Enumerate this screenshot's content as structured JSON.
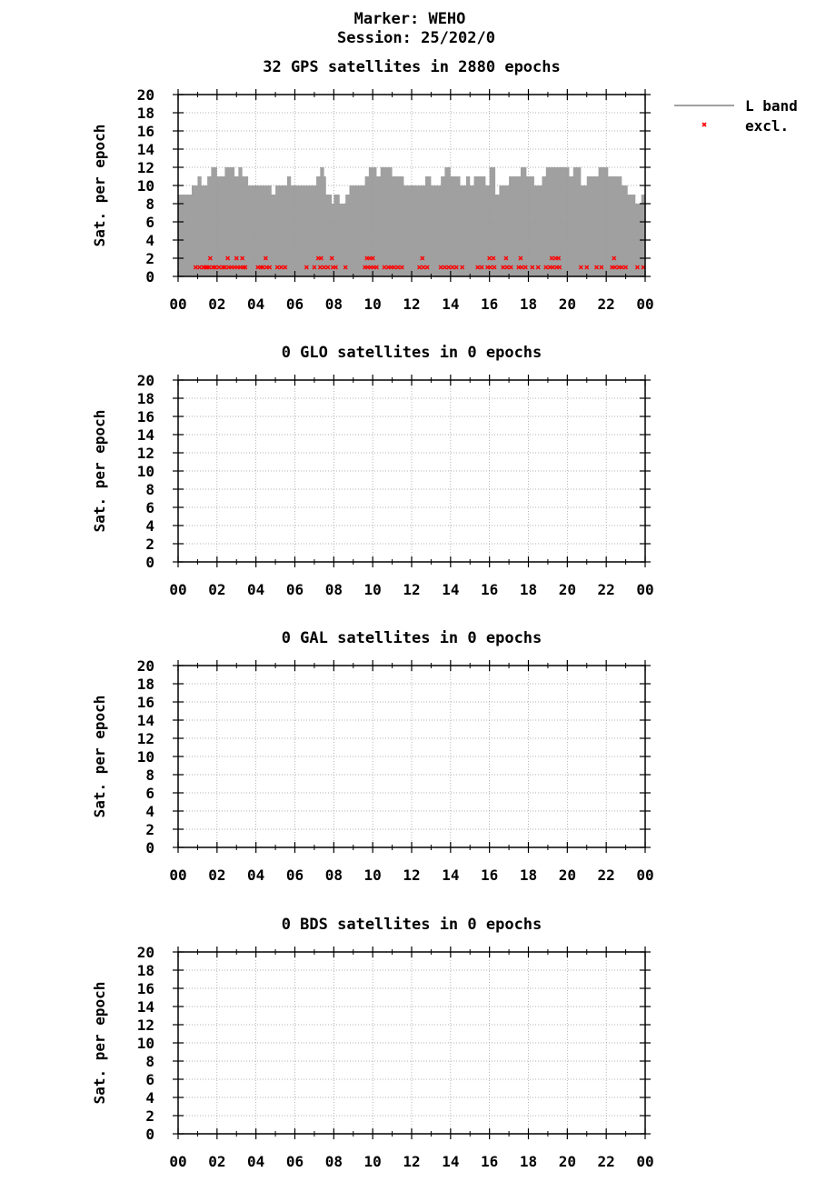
{
  "header": {
    "marker": "Marker: WEHO",
    "session": "Session: 25/202/0"
  },
  "legend": {
    "items": [
      {
        "label": "L band",
        "symbol": "line",
        "color": "#a0a0a0"
      },
      {
        "label": "excl.",
        "symbol": "cross",
        "color": "#ff0000"
      }
    ]
  },
  "colors": {
    "fill": "#a0a0a0",
    "excluded": "#ff0000",
    "grid": "#999999"
  },
  "chart_data": [
    {
      "type": "area",
      "title": "32 GPS satellites in 2880 epochs",
      "ylabel": "Sat. per epoch",
      "xlim": [
        0,
        24
      ],
      "ylim": [
        0,
        20
      ],
      "xticks": [
        "00",
        "02",
        "04",
        "06",
        "08",
        "10",
        "12",
        "14",
        "16",
        "18",
        "20",
        "22",
        "00"
      ],
      "yticks": [
        0,
        2,
        4,
        6,
        8,
        10,
        12,
        14,
        16,
        18,
        20
      ],
      "grid": true,
      "series": [
        {
          "name": "L band",
          "steps": [
            [
              0.0,
              9
            ],
            [
              0.7,
              10
            ],
            [
              1.0,
              11
            ],
            [
              1.2,
              10
            ],
            [
              1.5,
              11
            ],
            [
              1.7,
              12
            ],
            [
              2.0,
              11
            ],
            [
              2.4,
              12
            ],
            [
              2.9,
              11
            ],
            [
              3.1,
              12
            ],
            [
              3.3,
              11
            ],
            [
              3.6,
              10
            ],
            [
              4.8,
              9
            ],
            [
              5.0,
              10
            ],
            [
              5.6,
              11
            ],
            [
              5.8,
              10
            ],
            [
              7.1,
              11
            ],
            [
              7.3,
              12
            ],
            [
              7.5,
              11
            ],
            [
              7.6,
              9
            ],
            [
              7.9,
              8
            ],
            [
              8.0,
              9
            ],
            [
              8.3,
              8
            ],
            [
              8.6,
              9
            ],
            [
              8.8,
              10
            ],
            [
              9.6,
              11
            ],
            [
              9.8,
              12
            ],
            [
              10.2,
              11
            ],
            [
              10.4,
              12
            ],
            [
              11.0,
              11
            ],
            [
              11.6,
              10
            ],
            [
              12.7,
              11
            ],
            [
              13.0,
              10
            ],
            [
              13.5,
              11
            ],
            [
              13.7,
              12
            ],
            [
              14.0,
              11
            ],
            [
              14.5,
              10
            ],
            [
              14.8,
              11
            ],
            [
              15.0,
              10
            ],
            [
              15.2,
              11
            ],
            [
              15.8,
              10
            ],
            [
              16.0,
              12
            ],
            [
              16.3,
              9
            ],
            [
              16.5,
              10
            ],
            [
              17.0,
              11
            ],
            [
              17.6,
              12
            ],
            [
              17.9,
              11
            ],
            [
              18.3,
              10
            ],
            [
              18.7,
              11
            ],
            [
              18.9,
              12
            ],
            [
              20.1,
              11
            ],
            [
              20.3,
              12
            ],
            [
              20.7,
              10
            ],
            [
              21.0,
              11
            ],
            [
              21.6,
              12
            ],
            [
              22.1,
              11
            ],
            [
              22.5,
              11
            ],
            [
              22.8,
              10
            ],
            [
              23.1,
              9
            ],
            [
              23.5,
              8
            ],
            [
              23.8,
              9
            ],
            [
              24.0,
              9
            ]
          ],
          "excluded": [
            [
              0.9,
              1
            ],
            [
              1.1,
              1
            ],
            [
              1.3,
              1
            ],
            [
              1.4,
              1
            ],
            [
              1.5,
              1
            ],
            [
              1.6,
              1
            ],
            [
              1.65,
              2
            ],
            [
              1.8,
              1
            ],
            [
              1.9,
              1
            ],
            [
              2.1,
              1
            ],
            [
              2.3,
              1
            ],
            [
              2.4,
              1
            ],
            [
              2.55,
              2
            ],
            [
              2.6,
              1
            ],
            [
              2.75,
              1
            ],
            [
              2.9,
              1
            ],
            [
              3.0,
              2
            ],
            [
              3.05,
              1
            ],
            [
              3.2,
              1
            ],
            [
              3.3,
              2
            ],
            [
              3.35,
              1
            ],
            [
              3.45,
              1
            ],
            [
              4.1,
              1
            ],
            [
              4.25,
              1
            ],
            [
              4.35,
              1
            ],
            [
              4.5,
              2
            ],
            [
              4.55,
              1
            ],
            [
              4.7,
              1
            ],
            [
              5.1,
              1
            ],
            [
              5.3,
              1
            ],
            [
              5.5,
              1
            ],
            [
              6.6,
              1
            ],
            [
              7.0,
              1
            ],
            [
              7.2,
              2
            ],
            [
              7.3,
              1
            ],
            [
              7.35,
              2
            ],
            [
              7.5,
              1
            ],
            [
              7.7,
              1
            ],
            [
              7.9,
              2
            ],
            [
              7.95,
              1
            ],
            [
              8.1,
              1
            ],
            [
              8.6,
              1
            ],
            [
              9.6,
              1
            ],
            [
              9.7,
              2
            ],
            [
              9.75,
              1
            ],
            [
              9.85,
              2
            ],
            [
              9.9,
              1
            ],
            [
              10.0,
              2
            ],
            [
              10.05,
              1
            ],
            [
              10.2,
              1
            ],
            [
              10.6,
              1
            ],
            [
              10.8,
              1
            ],
            [
              10.95,
              1
            ],
            [
              11.1,
              1
            ],
            [
              11.3,
              1
            ],
            [
              11.5,
              1
            ],
            [
              12.4,
              1
            ],
            [
              12.55,
              2
            ],
            [
              12.6,
              1
            ],
            [
              12.8,
              1
            ],
            [
              13.5,
              1
            ],
            [
              13.7,
              1
            ],
            [
              13.9,
              1
            ],
            [
              14.1,
              1
            ],
            [
              14.3,
              1
            ],
            [
              14.6,
              1
            ],
            [
              15.4,
              1
            ],
            [
              15.6,
              1
            ],
            [
              15.9,
              1
            ],
            [
              16.0,
              2
            ],
            [
              16.05,
              1
            ],
            [
              16.2,
              2
            ],
            [
              16.25,
              1
            ],
            [
              16.7,
              1
            ],
            [
              16.85,
              2
            ],
            [
              16.9,
              1
            ],
            [
              17.1,
              1
            ],
            [
              17.5,
              1
            ],
            [
              17.6,
              2
            ],
            [
              17.65,
              1
            ],
            [
              17.85,
              1
            ],
            [
              18.2,
              1
            ],
            [
              18.5,
              1
            ],
            [
              18.9,
              1
            ],
            [
              19.1,
              1
            ],
            [
              19.2,
              2
            ],
            [
              19.25,
              1
            ],
            [
              19.4,
              2
            ],
            [
              19.45,
              1
            ],
            [
              19.55,
              2
            ],
            [
              19.6,
              1
            ],
            [
              20.7,
              1
            ],
            [
              21.0,
              1
            ],
            [
              21.5,
              1
            ],
            [
              21.75,
              1
            ],
            [
              22.3,
              1
            ],
            [
              22.4,
              2
            ],
            [
              22.45,
              1
            ],
            [
              22.65,
              1
            ],
            [
              22.8,
              1
            ],
            [
              23.0,
              1
            ],
            [
              23.6,
              1
            ],
            [
              23.9,
              1
            ]
          ]
        }
      ]
    },
    {
      "type": "area",
      "title": "0 GLO satellites in 0 epochs",
      "ylabel": "Sat. per epoch",
      "xlim": [
        0,
        24
      ],
      "ylim": [
        0,
        20
      ],
      "xticks": [
        "00",
        "02",
        "04",
        "06",
        "08",
        "10",
        "12",
        "14",
        "16",
        "18",
        "20",
        "22",
        "00"
      ],
      "yticks": [
        0,
        2,
        4,
        6,
        8,
        10,
        12,
        14,
        16,
        18,
        20
      ],
      "grid": true,
      "series": []
    },
    {
      "type": "area",
      "title": "0 GAL satellites in 0 epochs",
      "ylabel": "Sat. per epoch",
      "xlim": [
        0,
        24
      ],
      "ylim": [
        0,
        20
      ],
      "xticks": [
        "00",
        "02",
        "04",
        "06",
        "08",
        "10",
        "12",
        "14",
        "16",
        "18",
        "20",
        "22",
        "00"
      ],
      "yticks": [
        0,
        2,
        4,
        6,
        8,
        10,
        12,
        14,
        16,
        18,
        20
      ],
      "grid": true,
      "series": []
    },
    {
      "type": "area",
      "title": "0 BDS satellites in 0 epochs",
      "ylabel": "Sat. per epoch",
      "xlim": [
        0,
        24
      ],
      "ylim": [
        0,
        20
      ],
      "xticks": [
        "00",
        "02",
        "04",
        "06",
        "08",
        "10",
        "12",
        "14",
        "16",
        "18",
        "20",
        "22",
        "00"
      ],
      "yticks": [
        0,
        2,
        4,
        6,
        8,
        10,
        12,
        14,
        16,
        18,
        20
      ],
      "grid": true,
      "series": []
    }
  ]
}
